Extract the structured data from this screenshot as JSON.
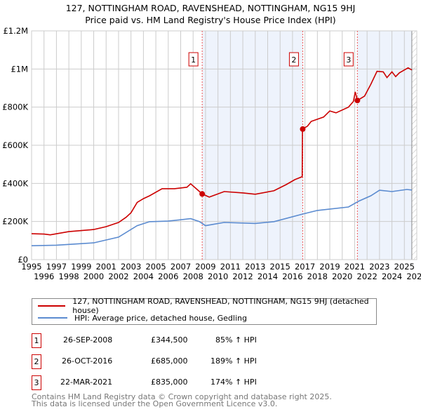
{
  "chart_data": {
    "type": "line",
    "title": "127, NOTTINGHAM ROAD, RAVENSHEAD, NOTTINGHAM, NG15 9HJ",
    "subtitle": "Price paid vs. HM Land Registry's House Price Index (HPI)",
    "xlim": [
      1995,
      2026
    ],
    "ylim": [
      0,
      1200000
    ],
    "x_ticks": [
      "1995",
      "1996",
      "1997",
      "1998",
      "1999",
      "2000",
      "2001",
      "2002",
      "2003",
      "2004",
      "2005",
      "2006",
      "2007",
      "2008",
      "2009",
      "2010",
      "2011",
      "2012",
      "2013",
      "2014",
      "2015",
      "2016",
      "2017",
      "2018",
      "2019",
      "2020",
      "2021",
      "2022",
      "2023",
      "2024",
      "2025",
      "2026"
    ],
    "y_ticks": [
      {
        "v": 0,
        "label": "£0"
      },
      {
        "v": 200000,
        "label": "£200K"
      },
      {
        "v": 400000,
        "label": "£400K"
      },
      {
        "v": 600000,
        "label": "£600K"
      },
      {
        "v": 800000,
        "label": "£800K"
      },
      {
        "v": 1000000,
        "label": "£1M"
      },
      {
        "v": 1200000,
        "label": "£1.2M"
      }
    ],
    "grid": true,
    "series": [
      {
        "name": "127, NOTTINGHAM ROAD, RAVENSHEAD, NOTTINGHAM, NG15 9HJ (detached house)",
        "color": "#cc0000",
        "x": [
          1995,
          1996,
          1996.5,
          1998,
          2000,
          2001,
          2002,
          2002.6,
          2003,
          2003.5,
          2004,
          2004.5,
          2005.5,
          2006.5,
          2007.5,
          2007.8,
          2008.2,
          2008.73,
          2009.3,
          2010.5,
          2012,
          2013,
          2014.5,
          2015.5,
          2016.2,
          2016.78,
          2016.8,
          2017.2,
          2017.5,
          2018.5,
          2019,
          2019.5,
          2020.5,
          2020.9,
          2021.05,
          2021.22,
          2021.8,
          2022.3,
          2022.8,
          2023.3,
          2023.6,
          2024,
          2024.3,
          2024.6,
          2025.3,
          2025.6
        ],
        "y": [
          136000,
          134000,
          130000,
          147000,
          158000,
          173000,
          195000,
          222000,
          246000,
          300000,
          320000,
          335000,
          372000,
          372000,
          380000,
          398000,
          375000,
          344500,
          328000,
          357000,
          350000,
          343000,
          361000,
          394000,
          420000,
          435000,
          685000,
          700000,
          725000,
          748000,
          780000,
          770000,
          800000,
          830000,
          880000,
          835000,
          858000,
          920000,
          988000,
          985000,
          955000,
          985000,
          960000,
          980000,
          1006000,
          995000
        ]
      },
      {
        "name": "HPI: Average price, detached house, Gedling",
        "color": "#5b8bd0",
        "x": [
          1995,
          1997,
          2000,
          2002,
          2003.5,
          2004.5,
          2006,
          2007.8,
          2008.5,
          2009,
          2010.5,
          2013,
          2014.5,
          2016.8,
          2018,
          2020.5,
          2021.3,
          2022.3,
          2023,
          2024,
          2025.2,
          2025.6
        ],
        "y": [
          73000,
          76000,
          88000,
          118000,
          178000,
          199000,
          202000,
          215000,
          200000,
          178000,
          195000,
          190000,
          199000,
          239000,
          258000,
          276000,
          306000,
          335000,
          364000,
          357000,
          368000,
          365000
        ]
      }
    ],
    "sales": [
      {
        "id": "1",
        "x": 2008.73,
        "y": 344500
      },
      {
        "id": "2",
        "x": 2016.82,
        "y": 685000
      },
      {
        "id": "3",
        "x": 2021.22,
        "y": 835000
      }
    ],
    "shaded_ranges": [
      [
        2008.73,
        2016.82
      ],
      [
        2021.22,
        2025.6
      ]
    ],
    "hatched_from": 2025.6,
    "legend": [
      "127, NOTTINGHAM ROAD, RAVENSHEAD, NOTTINGHAM, NG15 9HJ (detached house)",
      "HPI: Average price, detached house, Gedling"
    ]
  },
  "table": [
    {
      "id": "1",
      "date": "26-SEP-2008",
      "price": "£344,500",
      "hpi": "85% ↑ HPI"
    },
    {
      "id": "2",
      "date": "26-OCT-2016",
      "price": "£685,000",
      "hpi": "189% ↑ HPI"
    },
    {
      "id": "3",
      "date": "22-MAR-2021",
      "price": "£835,000",
      "hpi": "174% ↑ HPI"
    }
  ],
  "footer": [
    "Contains HM Land Registry data © Crown copyright and database right 2025.",
    "This data is licensed under the Open Government Licence v3.0."
  ]
}
